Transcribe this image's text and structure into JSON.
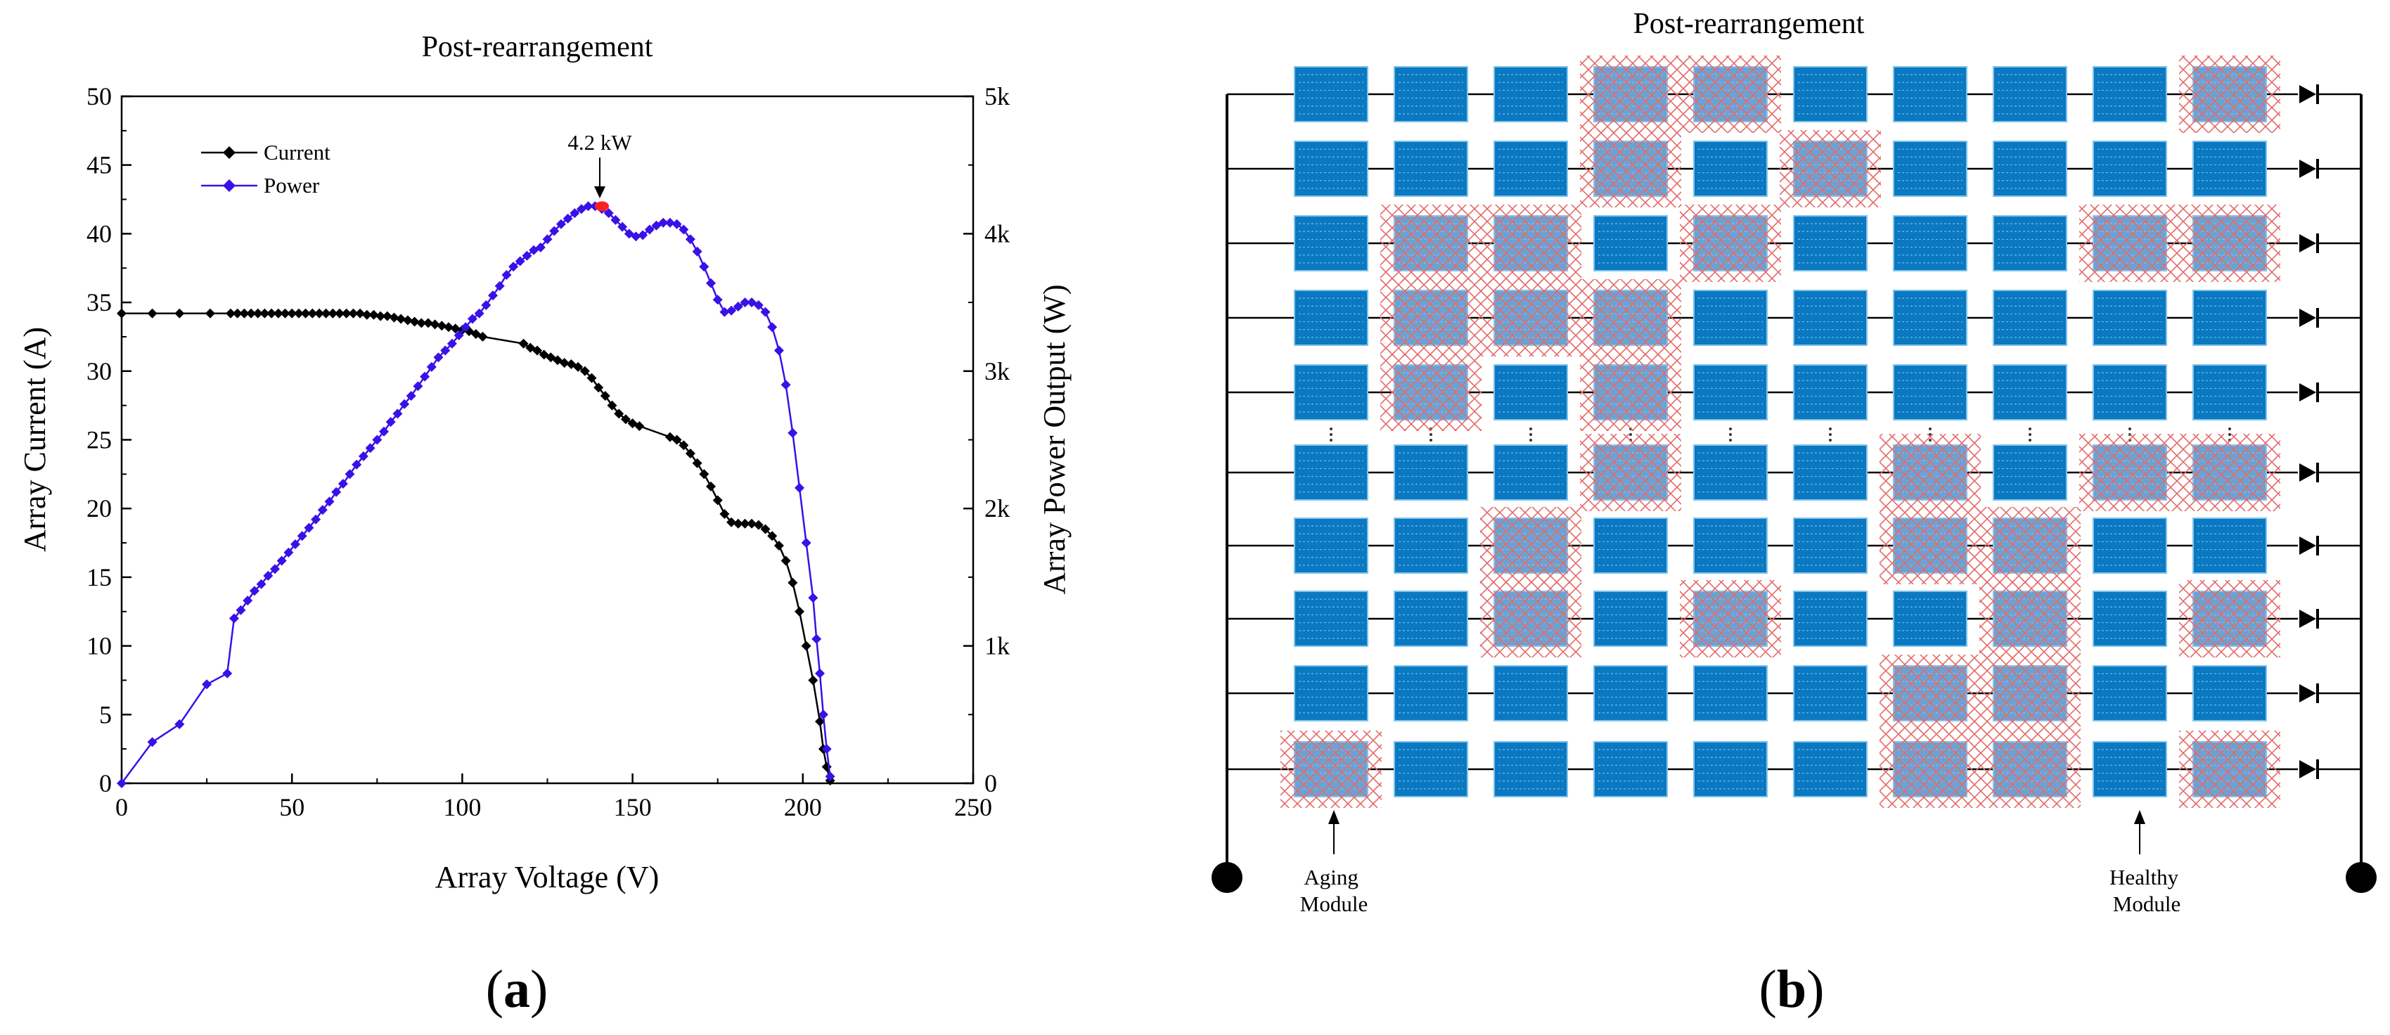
{
  "figure": {
    "panel_a_label": "a",
    "panel_b_label": "b"
  },
  "chart_data": [
    {
      "type": "line",
      "title": "Post-rearrangement",
      "xlabel": "Array Voltage (V)",
      "ylabel": "Array Current (A)",
      "y2label": "Array Power Output (W)",
      "xlim": [
        0,
        250
      ],
      "ylim": [
        0,
        50
      ],
      "y2lim": [
        0,
        5000
      ],
      "x_ticks": [
        0,
        50,
        100,
        150,
        200,
        250
      ],
      "y_ticks": [
        0,
        5,
        10,
        15,
        20,
        25,
        30,
        35,
        40,
        45,
        50
      ],
      "y2_ticks": [
        0,
        1000,
        2000,
        3000,
        4000,
        5000
      ],
      "y2_tick_labels": [
        "0",
        "1k",
        "2k",
        "3k",
        "4k",
        "5k"
      ],
      "legend_position": "top-left",
      "colors": {
        "current": "#000000",
        "power": "#3a10e8",
        "peak": "#ff2020"
      },
      "annotation": {
        "text": "4.2 kW",
        "x": 141,
        "y2": 4200
      },
      "series": [
        {
          "name": "Current",
          "axis": "left",
          "x": [
            0,
            9,
            17,
            26,
            32,
            34,
            36,
            38,
            40,
            42,
            44,
            46,
            48,
            50,
            52,
            54,
            56,
            58,
            60,
            62,
            64,
            66,
            68,
            70,
            72,
            74,
            76,
            78,
            80,
            82,
            84,
            86,
            88,
            90,
            92,
            94,
            96,
            98,
            100,
            102,
            104,
            106,
            118,
            120,
            122,
            124,
            126,
            128,
            130,
            132,
            134,
            136,
            138,
            140,
            142,
            144,
            146,
            148,
            150,
            152,
            161,
            163,
            165,
            167,
            169,
            171,
            173,
            175,
            177,
            179,
            181,
            183,
            185,
            187,
            189,
            191,
            193,
            195,
            197,
            199,
            201,
            203,
            205,
            206,
            207,
            208
          ],
          "values": [
            34.2,
            34.2,
            34.2,
            34.2,
            34.2,
            34.2,
            34.2,
            34.2,
            34.2,
            34.2,
            34.2,
            34.2,
            34.2,
            34.2,
            34.2,
            34.2,
            34.2,
            34.2,
            34.2,
            34.2,
            34.2,
            34.2,
            34.2,
            34.2,
            34.1,
            34.1,
            34.0,
            34.0,
            33.9,
            33.8,
            33.7,
            33.6,
            33.5,
            33.5,
            33.4,
            33.3,
            33.2,
            33.1,
            33.0,
            32.9,
            32.7,
            32.5,
            32.0,
            31.7,
            31.5,
            31.2,
            31.0,
            30.8,
            30.6,
            30.5,
            30.3,
            30.0,
            29.5,
            28.8,
            28.2,
            27.5,
            26.9,
            26.5,
            26.2,
            26.0,
            25.2,
            25.0,
            24.6,
            24.0,
            23.3,
            22.5,
            21.6,
            20.6,
            19.6,
            19.0,
            18.9,
            18.9,
            18.9,
            18.8,
            18.5,
            18.0,
            17.3,
            16.2,
            14.6,
            12.5,
            10.0,
            7.5,
            4.5,
            2.5,
            1.2,
            0.2
          ]
        },
        {
          "name": "Power",
          "axis": "right",
          "x": [
            0,
            9,
            17,
            25,
            31,
            33,
            35,
            37,
            39,
            41,
            43,
            45,
            47,
            49,
            51,
            53,
            55,
            57,
            59,
            61,
            63,
            65,
            67,
            69,
            71,
            73,
            75,
            77,
            79,
            81,
            83,
            85,
            87,
            89,
            91,
            93,
            95,
            97,
            99,
            101,
            103,
            105,
            107,
            109,
            111,
            113,
            115,
            117,
            119,
            121,
            123,
            125,
            127,
            129,
            131,
            133,
            135,
            137,
            139,
            141,
            143,
            145,
            147,
            149,
            151,
            153,
            155,
            157,
            159,
            161,
            163,
            165,
            167,
            169,
            171,
            173,
            175,
            177,
            179,
            181,
            183,
            185,
            187,
            189,
            191,
            193,
            195,
            197,
            199,
            201,
            203,
            204,
            205,
            206,
            207,
            208
          ],
          "values": [
            0,
            300,
            430,
            720,
            800,
            1200,
            1260,
            1330,
            1400,
            1450,
            1510,
            1560,
            1620,
            1680,
            1740,
            1800,
            1860,
            1920,
            1990,
            2050,
            2120,
            2180,
            2250,
            2320,
            2380,
            2440,
            2500,
            2560,
            2630,
            2690,
            2760,
            2820,
            2890,
            2960,
            3030,
            3100,
            3150,
            3200,
            3260,
            3320,
            3380,
            3420,
            3480,
            3550,
            3620,
            3700,
            3760,
            3800,
            3840,
            3880,
            3900,
            3960,
            4020,
            4070,
            4110,
            4150,
            4180,
            4200,
            4200,
            4180,
            4150,
            4100,
            4050,
            4000,
            3980,
            3990,
            4030,
            4060,
            4080,
            4080,
            4070,
            4030,
            3960,
            3870,
            3760,
            3640,
            3520,
            3430,
            3440,
            3470,
            3500,
            3500,
            3480,
            3430,
            3320,
            3150,
            2900,
            2550,
            2150,
            1750,
            1350,
            1050,
            800,
            500,
            250,
            50
          ]
        }
      ]
    },
    {
      "type": "diagram",
      "title": "Post-rearrangement",
      "grid_rows": 10,
      "grid_cols": 10,
      "module_status_legend": {
        "A": "aging module (red hatched)",
        "H": "healthy module (blue)"
      },
      "module_grid": [
        "HHHAAHHHHA",
        "HHHAHAHHHH",
        "HAAHAHHHAA",
        "HAAAHHHHHH",
        "HAHAHHHHHH",
        "HHHAHHAHAA",
        "HHAHHHAAHH",
        "HHAHAHHAHA",
        "HHHHHHAAHH",
        "AHHHHHAAHA"
      ],
      "labels": {
        "aging": "Aging\nModule",
        "healthy": "Healthy\nModule",
        "aging_lines": [
          "Aging",
          "Module"
        ],
        "healthy_lines": [
          "Healthy",
          "Module"
        ]
      },
      "colors": {
        "module_fill": "#0a79c2",
        "module_edge": "#7fc3ea",
        "aging_hatch": "#e05a5a",
        "aging_overlay": "#a9bfe2"
      }
    }
  ]
}
